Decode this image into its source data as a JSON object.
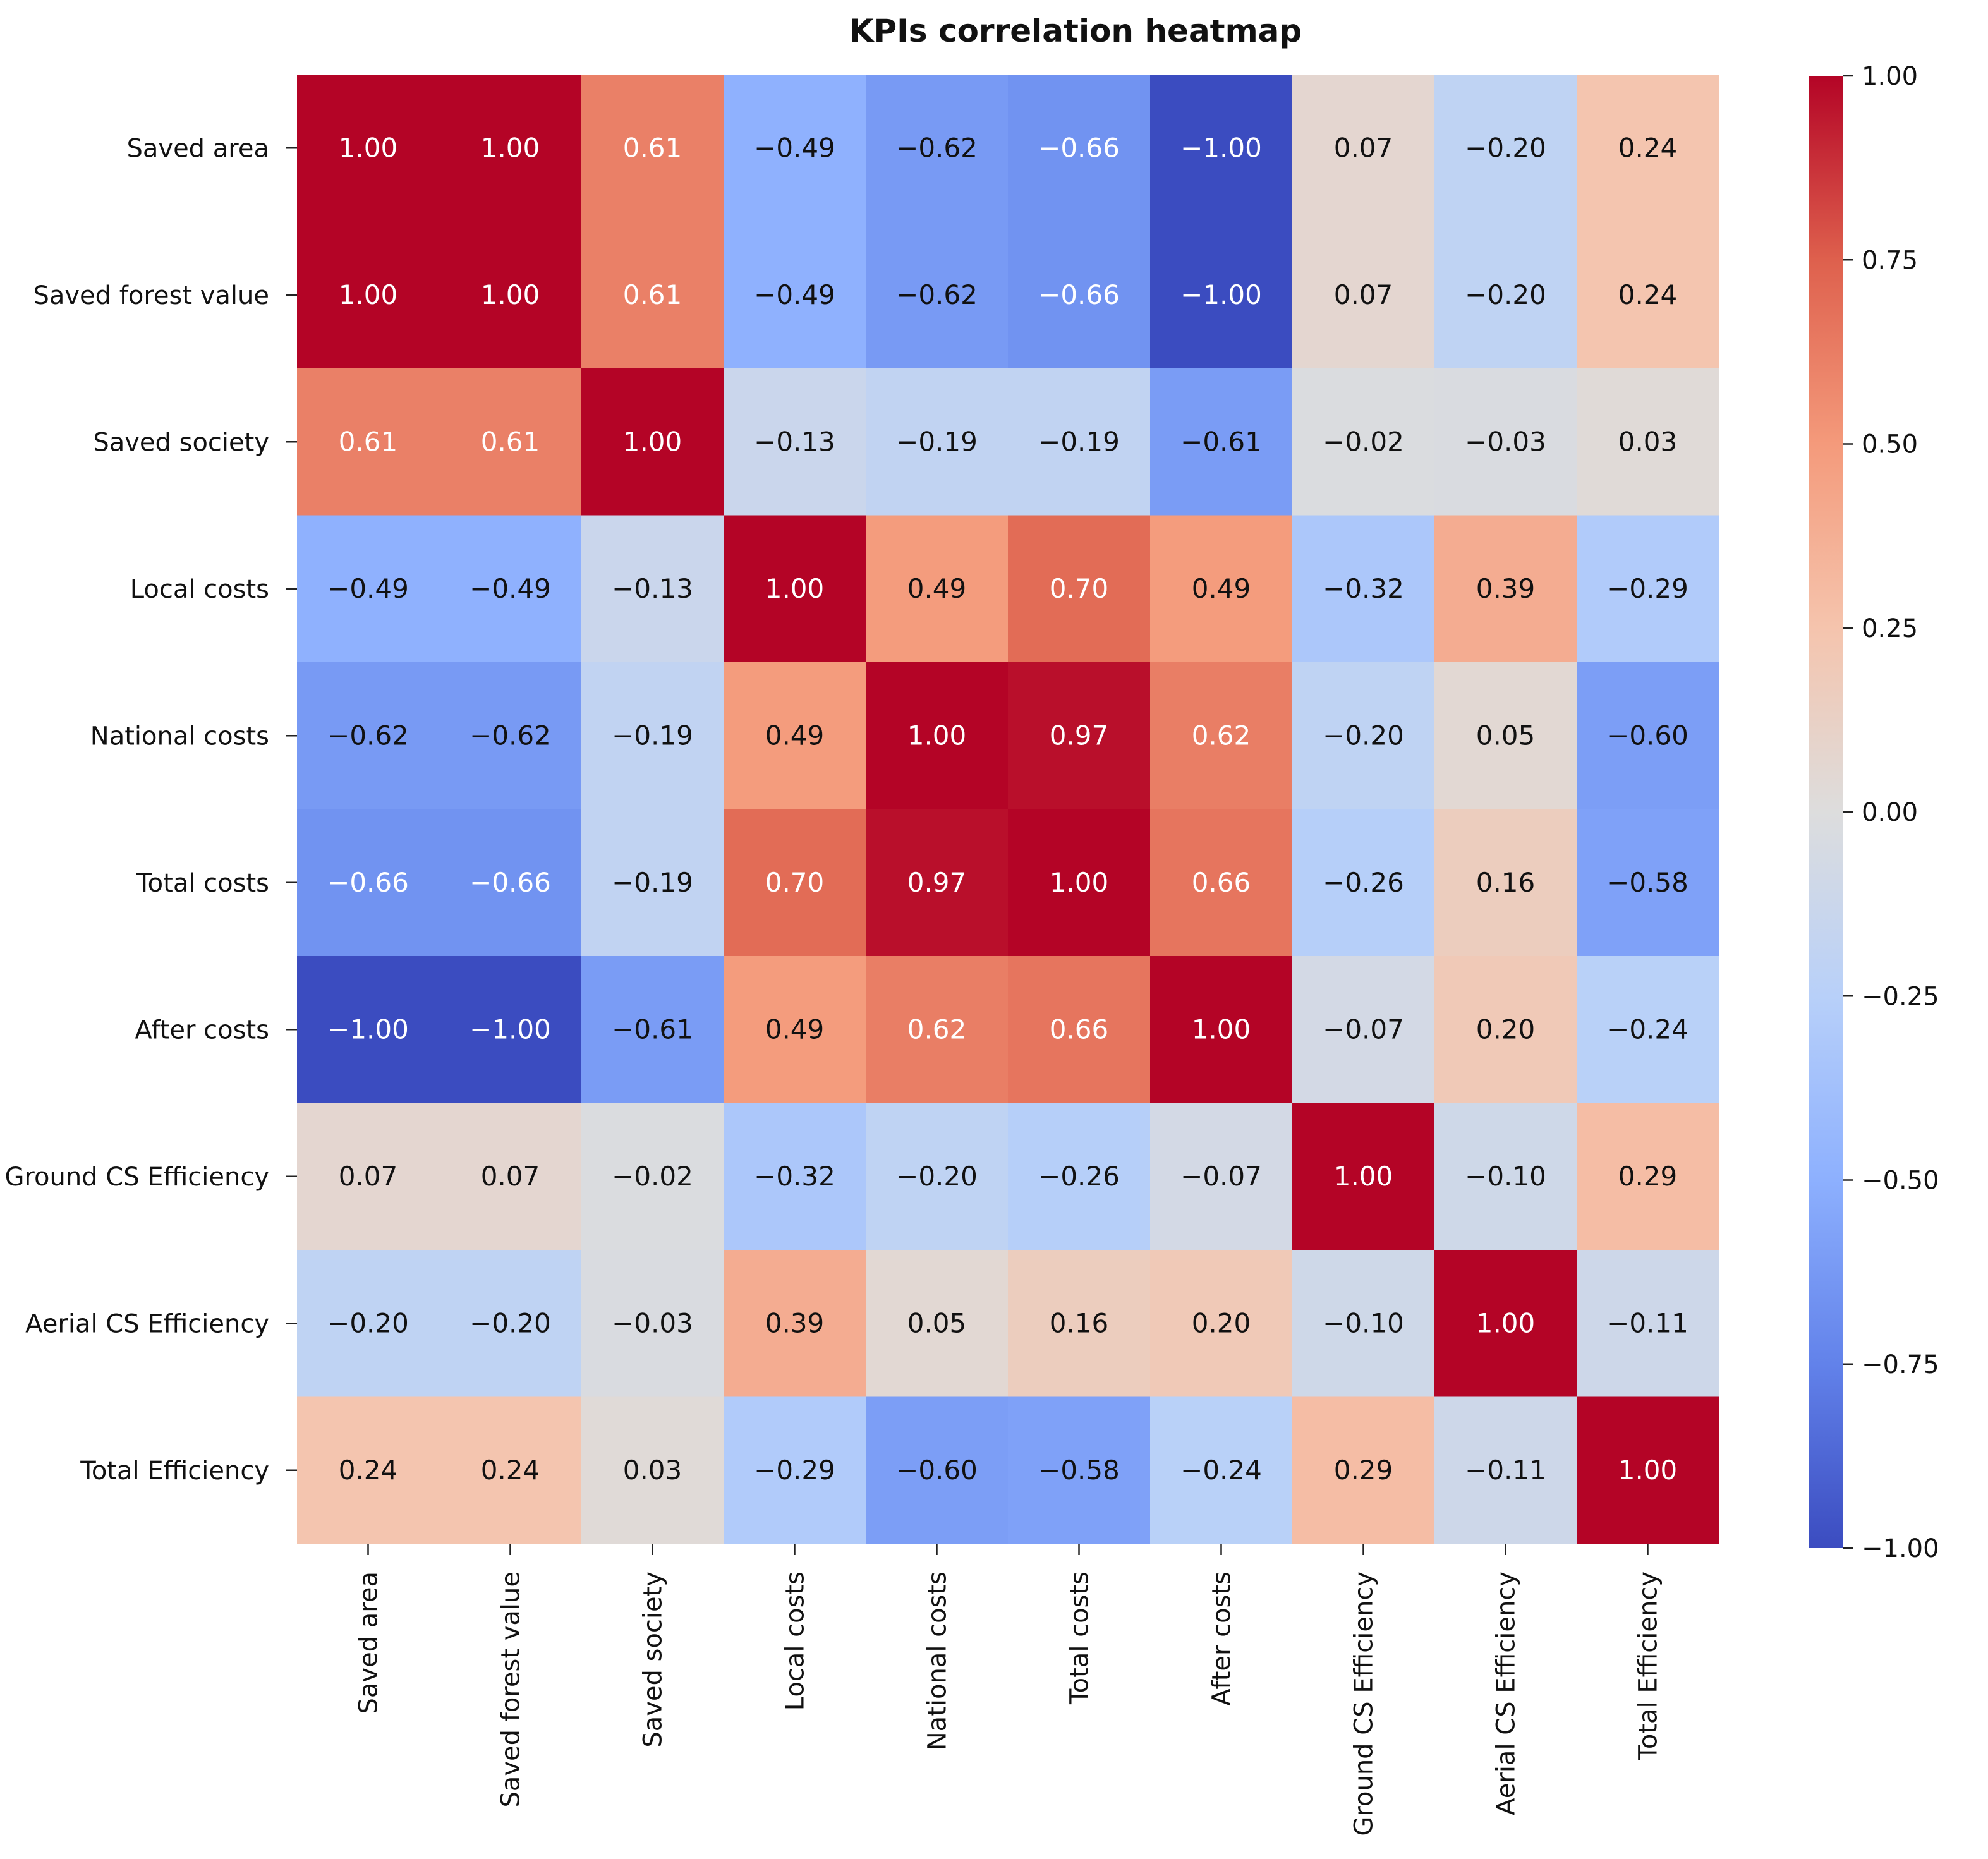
{
  "chart_data": {
    "type": "heatmap",
    "title": "KPIs correlation heatmap",
    "xlabel": "",
    "ylabel": "",
    "row_labels": [
      "Saved area",
      "Saved forest value",
      "Saved society",
      "Local costs",
      "National costs",
      "Total costs",
      "After costs",
      "Ground CS Efficiency",
      "Aerial CS Efficiency",
      "Total Efficiency"
    ],
    "column_labels": [
      "Saved area",
      "Saved forest value",
      "Saved society",
      "Local costs",
      "National costs",
      "Total costs",
      "After costs",
      "Ground CS Efficiency",
      "Aerial CS Efficiency",
      "Total Efficiency"
    ],
    "values": [
      [
        1.0,
        1.0,
        0.61,
        -0.49,
        -0.62,
        -0.66,
        -1.0,
        0.07,
        -0.2,
        0.24
      ],
      [
        1.0,
        1.0,
        0.61,
        -0.49,
        -0.62,
        -0.66,
        -1.0,
        0.07,
        -0.2,
        0.24
      ],
      [
        0.61,
        0.61,
        1.0,
        -0.13,
        -0.19,
        -0.19,
        -0.61,
        -0.02,
        -0.03,
        0.03
      ],
      [
        -0.49,
        -0.49,
        -0.13,
        1.0,
        0.49,
        0.7,
        0.49,
        -0.32,
        0.39,
        -0.29
      ],
      [
        -0.62,
        -0.62,
        -0.19,
        0.49,
        1.0,
        0.97,
        0.62,
        -0.2,
        0.05,
        -0.6
      ],
      [
        -0.66,
        -0.66,
        -0.19,
        0.7,
        0.97,
        1.0,
        0.66,
        -0.26,
        0.16,
        -0.58
      ],
      [
        -1.0,
        -1.0,
        -0.61,
        0.49,
        0.62,
        0.66,
        1.0,
        -0.07,
        0.2,
        -0.24
      ],
      [
        0.07,
        0.07,
        -0.02,
        -0.32,
        -0.2,
        -0.26,
        -0.07,
        1.0,
        -0.1,
        0.29
      ],
      [
        -0.2,
        -0.2,
        -0.03,
        0.39,
        0.05,
        0.16,
        0.2,
        -0.1,
        1.0,
        -0.11
      ],
      [
        0.24,
        0.24,
        0.03,
        -0.29,
        -0.6,
        -0.58,
        -0.24,
        0.29,
        -0.11,
        1.0
      ]
    ],
    "value_range": [
      -1.0,
      1.0
    ],
    "annotations": true,
    "value_format": "2 decimals, unicode minus sign",
    "colormap": "coolwarm",
    "colorbar": {
      "ticks": [
        1.0,
        0.75,
        0.5,
        0.25,
        0.0,
        -0.25,
        -0.5,
        -0.75,
        -1.0
      ],
      "tick_labels": [
        "1.00",
        "0.75",
        "0.50",
        "0.25",
        "0.00",
        "−0.25",
        "−0.50",
        "−0.75",
        "−1.00"
      ]
    },
    "grid": false,
    "legend": "colorbar at right"
  }
}
